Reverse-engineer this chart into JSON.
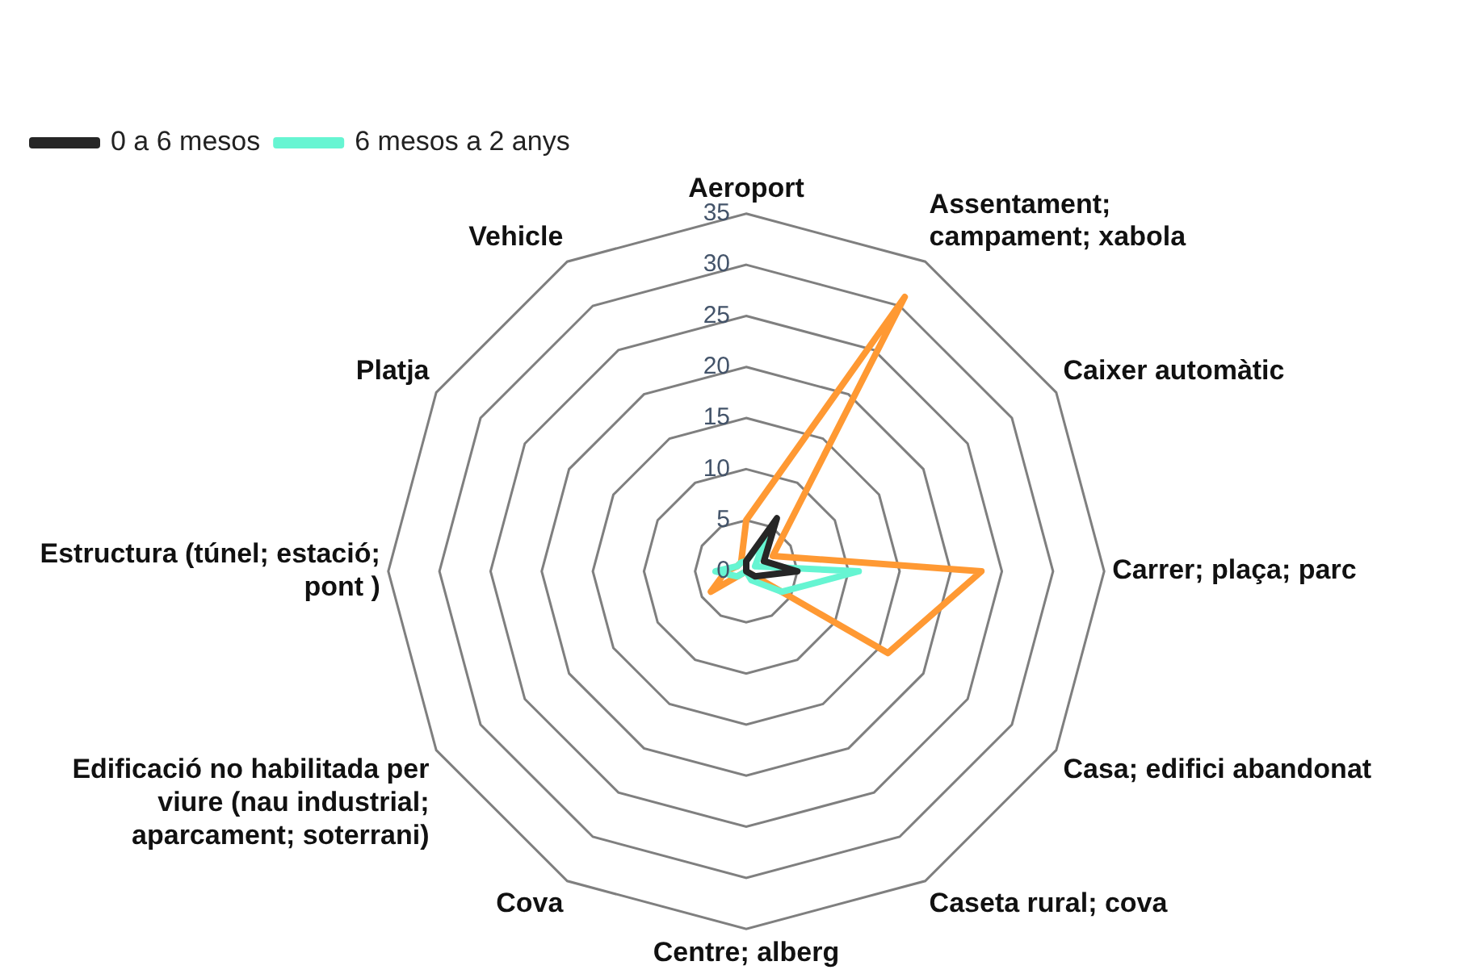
{
  "chart_data": {
    "type": "radar",
    "categories": [
      "Aeroport",
      "Assentament; campament; xabola",
      "Caixer automàtic",
      "Carrer; plaça; parc",
      "Casa; edifici abandonat",
      "Caseta rural; cova",
      "Centre; alberg",
      "Cova",
      "Edificació no habilitada per viure (nau industrial; aparcament; soterrani)",
      "Estructura (túnel; estació; pont )",
      "Platja",
      "Vehicle"
    ],
    "series": [
      {
        "name": "0 a 6 mesos",
        "color": "#262626",
        "values": [
          1,
          6,
          2,
          5,
          1,
          0,
          0,
          0,
          0,
          0,
          0,
          0
        ]
      },
      {
        "name": "6 mesos a 2 anys",
        "color": "#66f5d2",
        "values": [
          1,
          4,
          1,
          11,
          4,
          1,
          0,
          0,
          1,
          3,
          1,
          1
        ]
      },
      {
        "color": "#ff9933",
        "values": [
          5,
          31,
          3,
          23,
          16,
          0,
          0,
          0,
          4,
          2,
          1,
          1
        ]
      }
    ],
    "ylim": [
      0,
      35
    ],
    "yticks": [
      0,
      5,
      10,
      15,
      20,
      25,
      30,
      35
    ],
    "grid": true,
    "legend": "top left",
    "marker": "none"
  }
}
